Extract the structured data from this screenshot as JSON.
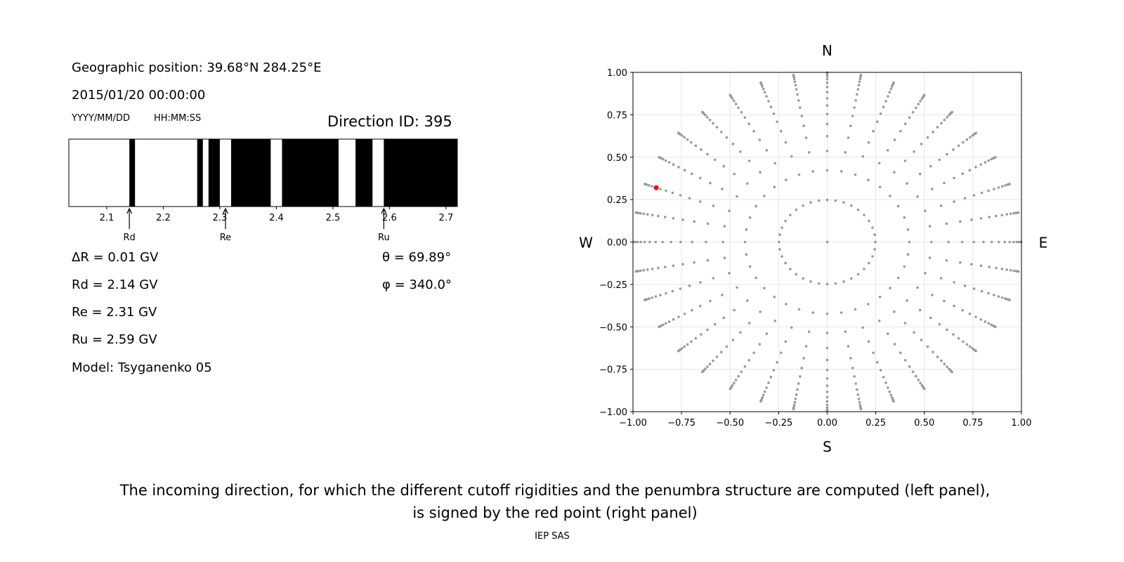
{
  "left_panel": {
    "geo_position": "Geographic position: 39.68°N 284.25°E",
    "datetime": "2015/01/20 00:00:00",
    "date_format": "YYYY/MM/DD",
    "time_format": "HH:MM:SS",
    "direction_id": "Direction ID: 395",
    "delta_r": "ΔR = 0.01 GV",
    "rd": "Rd = 2.14 GV",
    "re": "Re = 2.31 GV",
    "ru": "Ru = 2.59 GV",
    "model": "Model: Tsyganenko 05",
    "theta": "θ = 69.89°",
    "phi": "φ = 340.0°"
  },
  "caption": {
    "line1": "The incoming direction, for which the different cutoff rigidities and the penumbra structure are computed (left panel),",
    "line2": "is signed by the red point (right panel)"
  },
  "footer": "IEP SAS",
  "chart_data": [
    {
      "type": "bar",
      "description_type": "penumbra",
      "xlim": [
        2.033,
        2.72
      ],
      "xticks": [
        "2.1",
        "2.2",
        "2.3",
        "2.4",
        "2.5",
        "2.6",
        "2.7"
      ],
      "xtick_values": [
        2.1,
        2.2,
        2.3,
        2.4,
        2.5,
        2.6,
        2.7
      ],
      "forbidden_intervals_black": [
        [
          2.14,
          2.15
        ],
        [
          2.26,
          2.27
        ],
        [
          2.28,
          2.3
        ],
        [
          2.32,
          2.39
        ],
        [
          2.41,
          2.51
        ],
        [
          2.54,
          2.57
        ],
        [
          2.59,
          2.72
        ]
      ],
      "markers": [
        {
          "label": "Rd",
          "value": 2.14
        },
        {
          "label": "Re",
          "value": 2.31
        },
        {
          "label": "Ru",
          "value": 2.59
        }
      ],
      "colors": {
        "forbidden": "#000000",
        "allowed": "#ffffff"
      }
    },
    {
      "type": "scatter",
      "xlim": [
        -1,
        1
      ],
      "ylim": [
        -1,
        1
      ],
      "ticks": [
        "−1.00",
        "−0.75",
        "−0.50",
        "−0.25",
        "0.00",
        "0.25",
        "0.50",
        "0.75",
        "1.00"
      ],
      "tick_values": [
        -1,
        -0.75,
        -0.5,
        -0.25,
        0,
        0.25,
        0.5,
        0.75,
        1
      ],
      "grid": true,
      "compass": {
        "n": "N",
        "s": "S",
        "e": "E",
        "w": "W"
      },
      "point_grid": {
        "azimuth_step_deg": 10,
        "center_point": [
          0,
          0
        ],
        "zenith_cos_values": [
          0.96875,
          0.90625,
          0.84375,
          0.78125,
          0.71875,
          0.65625,
          0.59375,
          0.53125,
          0.46875,
          0.40625,
          0.34375,
          0.28125,
          0.21875,
          0.15625,
          0.09375,
          0.03125
        ]
      },
      "highlighted_point": {
        "x": -0.88,
        "y": 0.32,
        "theta_deg": 69.89,
        "phi_deg": 340.0
      },
      "colors": {
        "points": "#999999",
        "highlight": "#ff0000",
        "grid": "#e6e6e6"
      }
    }
  ]
}
